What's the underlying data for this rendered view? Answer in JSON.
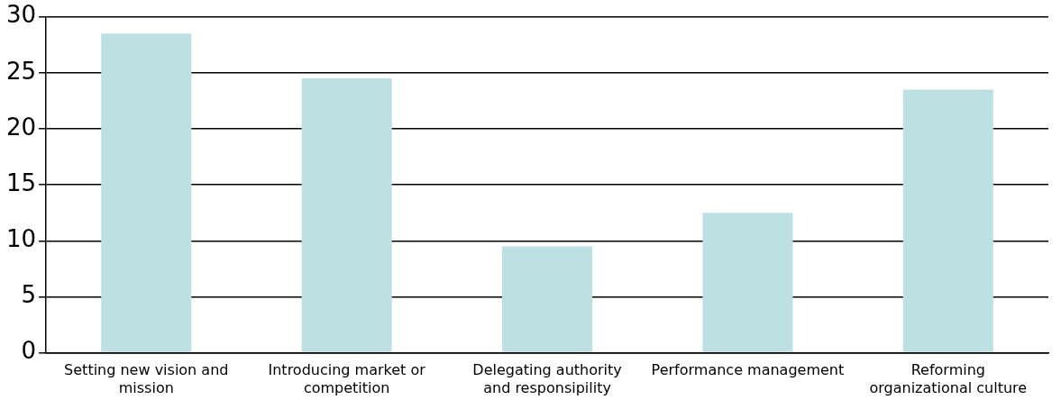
{
  "chart_data": {
    "type": "bar",
    "categories": [
      "Setting new vision and mission",
      "Introducing market or competition",
      "Delegating authority and responsipility",
      "Performance management",
      "Reforming organizational culture"
    ],
    "values": [
      28.5,
      24.5,
      9.5,
      12.5,
      23.5
    ],
    "color": "#bde0e3",
    "ylim": [
      0,
      30
    ],
    "yticks": [
      0,
      5,
      10,
      15,
      20,
      25,
      30
    ],
    "grid": "y",
    "legend": false
  }
}
